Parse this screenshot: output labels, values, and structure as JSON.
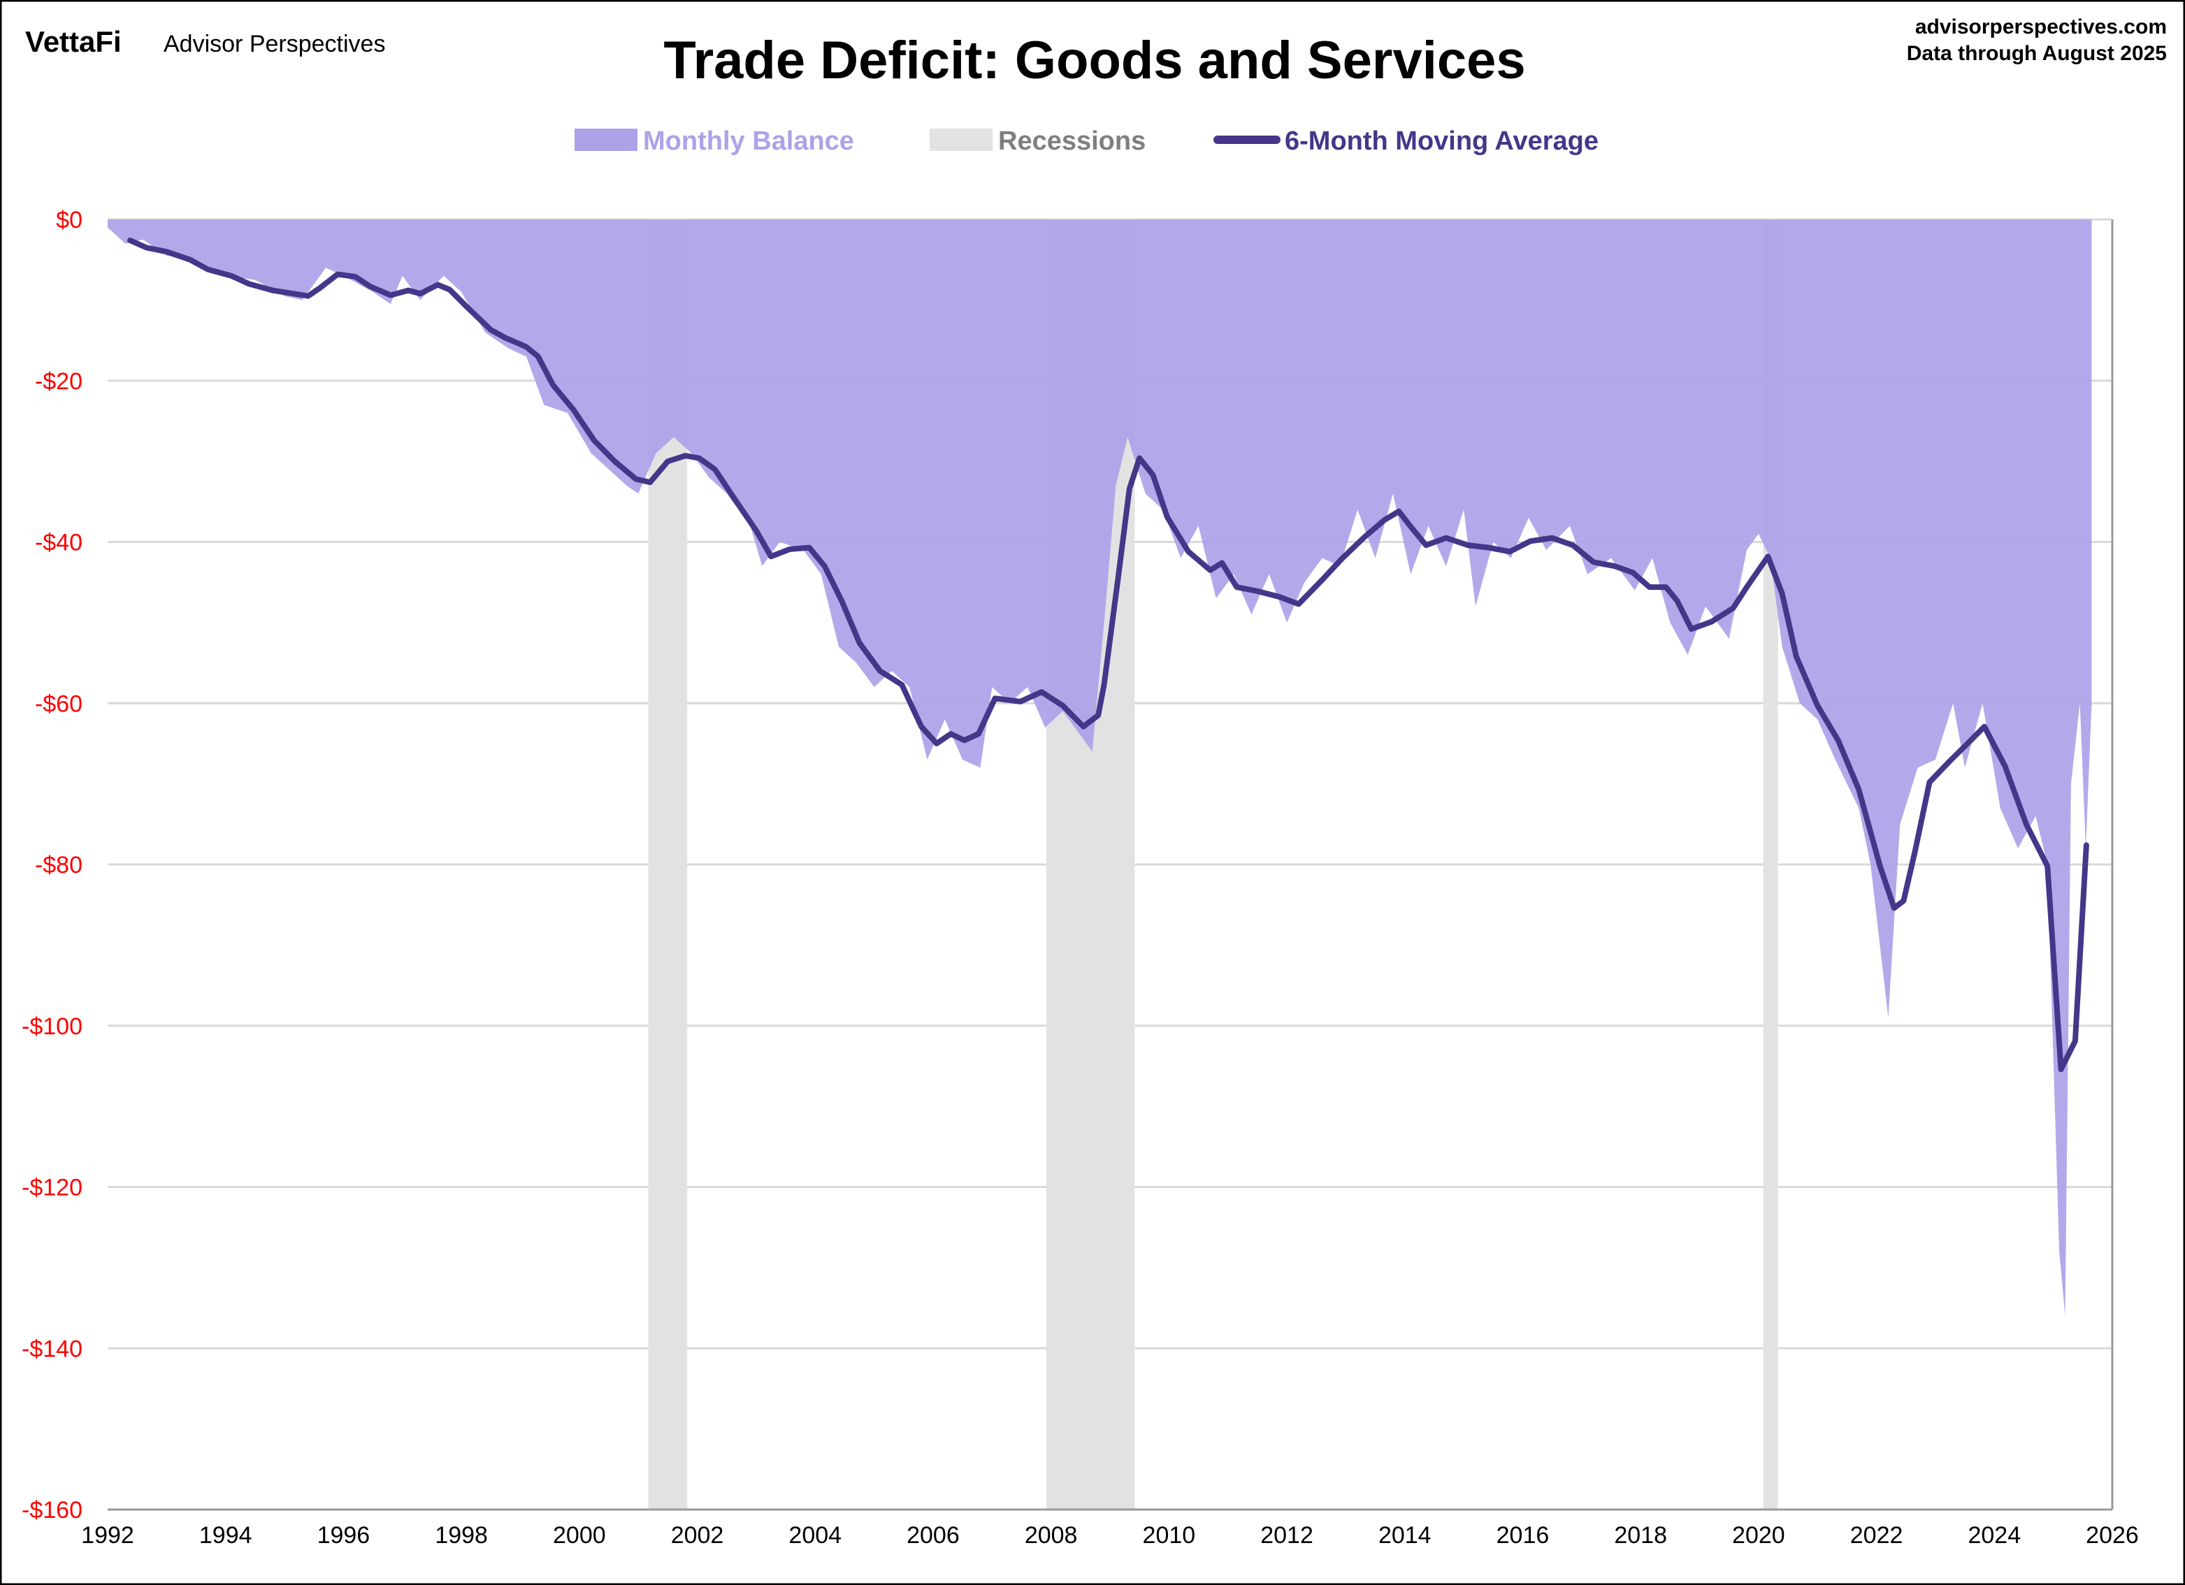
{
  "header": {
    "logo": "VettaFi",
    "brand": "Advisor Perspectives",
    "site": "advisorperspectives.com",
    "data_through": "Data through August 2025"
  },
  "chart_data": {
    "type": "area",
    "title": "Trade Deficit: Goods and Services",
    "xlabel": "",
    "ylabel": "",
    "xlim": [
      1992,
      2026
    ],
    "ylim": [
      -160,
      0
    ],
    "grid": true,
    "legend_position": "top-center",
    "x_ticks": [
      "1992",
      "1994",
      "1996",
      "1998",
      "2000",
      "2002",
      "2004",
      "2006",
      "2008",
      "2010",
      "2012",
      "2014",
      "2016",
      "2018",
      "2020",
      "2022",
      "2024",
      "2026"
    ],
    "y_ticks": [
      "$0",
      "-$20",
      "-$40",
      "-$60",
      "-$80",
      "-$100",
      "-$120",
      "-$140",
      "-$160"
    ],
    "y_tick_values": [
      0,
      -20,
      -40,
      -60,
      -80,
      -100,
      -120,
      -140,
      -160
    ],
    "colors": {
      "balance": "#ada2e8",
      "recession": "#e2e2e2",
      "average": "#45368a",
      "ytick": "#ff0000"
    },
    "legend": [
      "Monthly Balance",
      "Recessions",
      "6-Month Moving Average"
    ],
    "recessions": [
      [
        2001.17,
        2001.83
      ],
      [
        2007.92,
        2009.42
      ],
      [
        2020.08,
        2020.33
      ]
    ],
    "series": [
      {
        "name": "Monthly Balance",
        "type": "area",
        "points": [
          [
            1992.0,
            -1
          ],
          [
            1992.3,
            -3
          ],
          [
            1992.6,
            -2.5
          ],
          [
            1993,
            -4.5
          ],
          [
            1993.5,
            -5
          ],
          [
            1994,
            -7
          ],
          [
            1994.5,
            -7.5
          ],
          [
            1995,
            -9.5
          ],
          [
            1995.3,
            -10
          ],
          [
            1995.7,
            -6
          ],
          [
            1996,
            -7
          ],
          [
            1996.5,
            -9
          ],
          [
            1996.8,
            -10.5
          ],
          [
            1997,
            -7
          ],
          [
            1997.3,
            -10
          ],
          [
            1997.7,
            -7
          ],
          [
            1998,
            -9
          ],
          [
            1998.4,
            -14
          ],
          [
            1998.8,
            -16
          ],
          [
            1999.1,
            -17
          ],
          [
            1999.4,
            -23
          ],
          [
            1999.8,
            -24
          ],
          [
            2000.2,
            -29
          ],
          [
            2000.5,
            -31
          ],
          [
            2000.8,
            -33
          ],
          [
            2001.0,
            -34
          ],
          [
            2001.3,
            -29
          ],
          [
            2001.6,
            -27
          ],
          [
            2001.9,
            -29
          ],
          [
            2002.2,
            -32
          ],
          [
            2002.5,
            -34
          ],
          [
            2002.9,
            -38
          ],
          [
            2003.1,
            -43
          ],
          [
            2003.4,
            -40
          ],
          [
            2003.8,
            -41
          ],
          [
            2004.1,
            -44
          ],
          [
            2004.4,
            -53
          ],
          [
            2004.7,
            -55
          ],
          [
            2005,
            -58
          ],
          [
            2005.3,
            -56
          ],
          [
            2005.6,
            -58
          ],
          [
            2005.9,
            -67
          ],
          [
            2006.2,
            -62
          ],
          [
            2006.5,
            -67
          ],
          [
            2006.8,
            -68
          ],
          [
            2007,
            -58
          ],
          [
            2007.3,
            -60
          ],
          [
            2007.6,
            -58
          ],
          [
            2007.9,
            -63
          ],
          [
            2008.2,
            -61
          ],
          [
            2008.5,
            -64
          ],
          [
            2008.7,
            -66
          ],
          [
            2008.9,
            -50
          ],
          [
            2009.1,
            -33
          ],
          [
            2009.3,
            -27
          ],
          [
            2009.6,
            -34
          ],
          [
            2009.9,
            -36
          ],
          [
            2010.2,
            -42
          ],
          [
            2010.5,
            -38
          ],
          [
            2010.8,
            -47
          ],
          [
            2011.1,
            -44
          ],
          [
            2011.4,
            -49
          ],
          [
            2011.7,
            -44
          ],
          [
            2012.0,
            -50
          ],
          [
            2012.3,
            -45
          ],
          [
            2012.6,
            -42
          ],
          [
            2012.9,
            -43
          ],
          [
            2013.2,
            -36
          ],
          [
            2013.5,
            -42
          ],
          [
            2013.8,
            -34
          ],
          [
            2014.1,
            -44
          ],
          [
            2014.4,
            -38
          ],
          [
            2014.7,
            -43
          ],
          [
            2015.0,
            -36
          ],
          [
            2015.2,
            -48
          ],
          [
            2015.5,
            -40
          ],
          [
            2015.8,
            -42
          ],
          [
            2016.1,
            -37
          ],
          [
            2016.4,
            -41
          ],
          [
            2016.8,
            -38
          ],
          [
            2017.1,
            -44
          ],
          [
            2017.5,
            -42
          ],
          [
            2017.9,
            -46
          ],
          [
            2018.2,
            -42
          ],
          [
            2018.5,
            -50
          ],
          [
            2018.8,
            -54
          ],
          [
            2019.1,
            -48
          ],
          [
            2019.5,
            -52
          ],
          [
            2019.8,
            -41
          ],
          [
            2020.0,
            -39
          ],
          [
            2020.2,
            -42
          ],
          [
            2020.4,
            -53
          ],
          [
            2020.7,
            -60
          ],
          [
            2021.0,
            -62
          ],
          [
            2021.3,
            -67
          ],
          [
            2021.7,
            -73
          ],
          [
            2021.9,
            -80
          ],
          [
            2022.2,
            -99
          ],
          [
            2022.4,
            -75
          ],
          [
            2022.7,
            -68
          ],
          [
            2023.0,
            -67
          ],
          [
            2023.3,
            -60
          ],
          [
            2023.5,
            -68
          ],
          [
            2023.8,
            -60
          ],
          [
            2024.1,
            -73
          ],
          [
            2024.4,
            -78
          ],
          [
            2024.7,
            -74
          ],
          [
            2024.9,
            -80
          ],
          [
            2025.1,
            -128
          ],
          [
            2025.2,
            -136
          ],
          [
            2025.3,
            -70
          ],
          [
            2025.45,
            -60
          ],
          [
            2025.55,
            -78
          ],
          [
            2025.65,
            -60
          ]
        ]
      },
      {
        "name": "6-Month Moving Average",
        "type": "line",
        "points": [
          [
            1992.38,
            -2.6
          ],
          [
            1992.66,
            -3.5
          ],
          [
            1993.0,
            -4
          ],
          [
            1993.4,
            -5
          ],
          [
            1993.7,
            -6.2
          ],
          [
            1994.1,
            -7
          ],
          [
            1994.4,
            -8
          ],
          [
            1994.8,
            -8.8
          ],
          [
            1995.15,
            -9.2
          ],
          [
            1995.4,
            -9.5
          ],
          [
            1995.6,
            -8.5
          ],
          [
            1995.9,
            -6.8
          ],
          [
            1996.2,
            -7.1
          ],
          [
            1996.45,
            -8.3
          ],
          [
            1996.8,
            -9.4
          ],
          [
            1997.1,
            -8.8
          ],
          [
            1997.3,
            -9.2
          ],
          [
            1997.6,
            -8.1
          ],
          [
            1997.8,
            -8.7
          ],
          [
            1998.1,
            -10.9
          ],
          [
            1998.5,
            -13.7
          ],
          [
            1998.75,
            -14.7
          ],
          [
            1999.1,
            -15.8
          ],
          [
            1999.3,
            -17
          ],
          [
            1999.55,
            -20.5
          ],
          [
            1999.9,
            -23.6
          ],
          [
            2000.25,
            -27.4
          ],
          [
            2000.6,
            -30
          ],
          [
            2000.96,
            -32.2
          ],
          [
            2001.2,
            -32.6
          ],
          [
            2001.5,
            -30
          ],
          [
            2001.8,
            -29.3
          ],
          [
            2002.03,
            -29.6
          ],
          [
            2002.3,
            -31
          ],
          [
            2002.6,
            -34.3
          ],
          [
            2003.0,
            -38.6
          ],
          [
            2003.25,
            -41.8
          ],
          [
            2003.57,
            -40.9
          ],
          [
            2003.9,
            -40.7
          ],
          [
            2004.16,
            -43
          ],
          [
            2004.45,
            -47.3
          ],
          [
            2004.75,
            -52.5
          ],
          [
            2005.1,
            -56
          ],
          [
            2005.47,
            -57.7
          ],
          [
            2005.8,
            -62.9
          ],
          [
            2006.06,
            -65
          ],
          [
            2006.3,
            -63.8
          ],
          [
            2006.53,
            -64.6
          ],
          [
            2006.77,
            -63.8
          ],
          [
            2007.05,
            -59.4
          ],
          [
            2007.48,
            -59.8
          ],
          [
            2007.84,
            -58.6
          ],
          [
            2008.2,
            -60.3
          ],
          [
            2008.55,
            -62.9
          ],
          [
            2008.8,
            -61.5
          ],
          [
            2008.9,
            -57.7
          ],
          [
            2009.15,
            -43.8
          ],
          [
            2009.33,
            -33.4
          ],
          [
            2009.5,
            -29.6
          ],
          [
            2009.73,
            -31.7
          ],
          [
            2009.97,
            -36.9
          ],
          [
            2010.33,
            -41.2
          ],
          [
            2010.7,
            -43.5
          ],
          [
            2010.9,
            -42.6
          ],
          [
            2011.15,
            -45.6
          ],
          [
            2011.5,
            -46.1
          ],
          [
            2011.87,
            -46.8
          ],
          [
            2012.2,
            -47.7
          ],
          [
            2012.6,
            -44.7
          ],
          [
            2012.93,
            -42.1
          ],
          [
            2013.3,
            -39.5
          ],
          [
            2013.65,
            -37.3
          ],
          [
            2013.9,
            -36.2
          ],
          [
            2014.1,
            -38.1
          ],
          [
            2014.36,
            -40.4
          ],
          [
            2014.7,
            -39.5
          ],
          [
            2015.07,
            -40.4
          ],
          [
            2015.42,
            -40.7
          ],
          [
            2015.78,
            -41.2
          ],
          [
            2016.13,
            -39.9
          ],
          [
            2016.5,
            -39.5
          ],
          [
            2016.85,
            -40.4
          ],
          [
            2017.2,
            -42.5
          ],
          [
            2017.56,
            -43
          ],
          [
            2017.87,
            -43.8
          ],
          [
            2018.15,
            -45.6
          ],
          [
            2018.43,
            -45.6
          ],
          [
            2018.62,
            -47.3
          ],
          [
            2018.86,
            -50.8
          ],
          [
            2019.2,
            -49.9
          ],
          [
            2019.57,
            -48.2
          ],
          [
            2019.8,
            -45.6
          ],
          [
            2020.16,
            -41.8
          ],
          [
            2020.4,
            -46.4
          ],
          [
            2020.64,
            -54.2
          ],
          [
            2021.0,
            -60.3
          ],
          [
            2021.35,
            -64.6
          ],
          [
            2021.7,
            -70.7
          ],
          [
            2022.06,
            -80.2
          ],
          [
            2022.3,
            -85.4
          ],
          [
            2022.46,
            -84.5
          ],
          [
            2022.65,
            -78.5
          ],
          [
            2022.9,
            -69.8
          ],
          [
            2023.24,
            -67.2
          ],
          [
            2023.6,
            -64.6
          ],
          [
            2023.83,
            -62.9
          ],
          [
            2024.18,
            -67.8
          ],
          [
            2024.54,
            -75
          ],
          [
            2024.9,
            -80.2
          ],
          [
            2025.13,
            -105.4
          ],
          [
            2025.37,
            -101.9
          ],
          [
            2025.56,
            -77.6
          ]
        ]
      }
    ]
  }
}
